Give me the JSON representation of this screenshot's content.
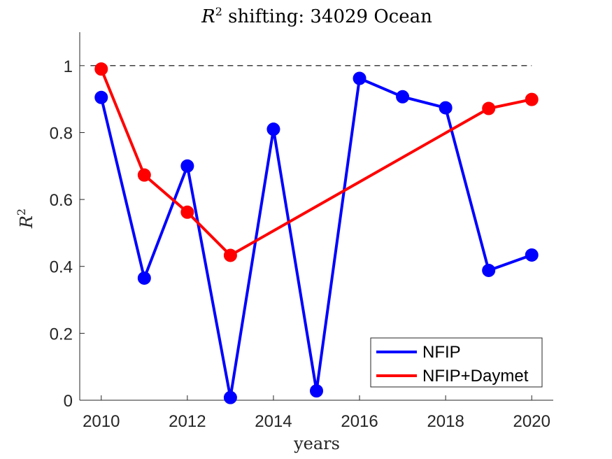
{
  "chart_data": {
    "type": "line",
    "title_italic": "R",
    "title_sup": "2",
    "title_rest": " shifting: 34029 Ocean",
    "xlabel": "years",
    "ylabel_italic": "R",
    "ylabel_sup": "2",
    "xlim": [
      2009.5,
      2020.5
    ],
    "ylim": [
      0,
      1.1
    ],
    "xticks": [
      2010,
      2012,
      2014,
      2016,
      2018,
      2020
    ],
    "xtick_labels": [
      "2010",
      "2012",
      "2014",
      "2016",
      "2018",
      "2020"
    ],
    "yticks": [
      0,
      0.2,
      0.4,
      0.6,
      0.8,
      1
    ],
    "ytick_labels": [
      "0",
      "0.2",
      "0.4",
      "0.6",
      "0.8",
      "1"
    ],
    "reference_line": {
      "y": 1,
      "style": "dashed",
      "color": "#000000"
    },
    "series": [
      {
        "name": "NFIP",
        "color": "#0000ff",
        "x": [
          2010,
          2011,
          2012,
          2013,
          2014,
          2015,
          2016,
          2017,
          2018,
          2019,
          2020
        ],
        "values": [
          0.905,
          0.365,
          0.7,
          0.008,
          0.81,
          0.028,
          0.962,
          0.907,
          0.874,
          0.388,
          0.434
        ]
      },
      {
        "name": "NFIP+Daymet",
        "color": "#ff0000",
        "x": [
          2010,
          2011,
          2012,
          2013,
          2019,
          2020
        ],
        "values": [
          0.99,
          0.673,
          0.562,
          0.433,
          0.872,
          0.899
        ]
      }
    ],
    "legend_location": "bottom-right",
    "grid": false
  }
}
